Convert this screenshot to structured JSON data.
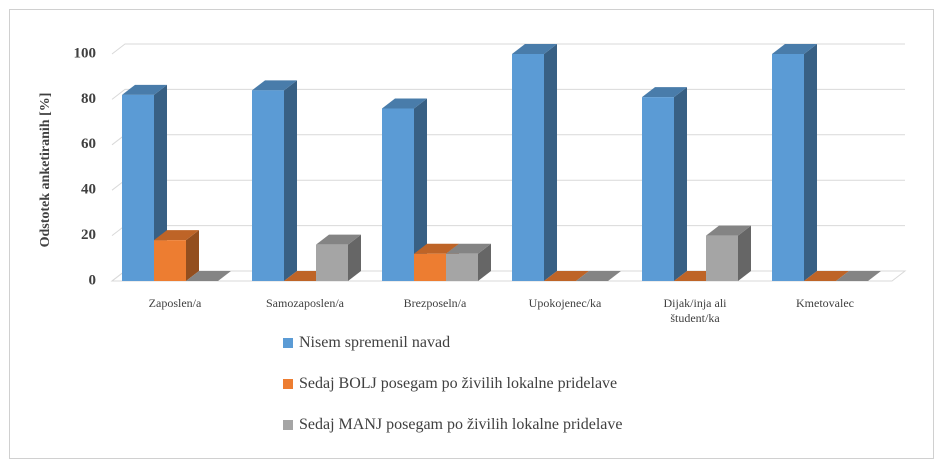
{
  "chart_data": {
    "type": "bar3d",
    "y_label": "Odstotek anketiranih [%]",
    "categories": [
      "Zaposlen/a",
      "Samozaposlen/a",
      "Brezposeln/a",
      "Upokojenec/ka",
      "Dijak/inja ali študent/ka",
      "Kmetovalec"
    ],
    "series": [
      {
        "name": "Nisem spremenil navad",
        "color": "#5b9bd5",
        "values": [
          82,
          84,
          76,
          100,
          81,
          100
        ]
      },
      {
        "name": "Sedaj BOLJ posegam po živilih lokalne pridelave",
        "color": "#ed7d31",
        "values": [
          18,
          0,
          12,
          0,
          0,
          0
        ]
      },
      {
        "name": "Sedaj MANJ posegam po živilih lokalne pridelave",
        "color": "#a5a5a5",
        "values": [
          0,
          16,
          12,
          0,
          20,
          0
        ]
      }
    ],
    "ylim": [
      0,
      100
    ],
    "yticks": [
      0,
      20,
      40,
      60,
      80,
      100
    ],
    "grid": true,
    "legend": "bottom"
  }
}
